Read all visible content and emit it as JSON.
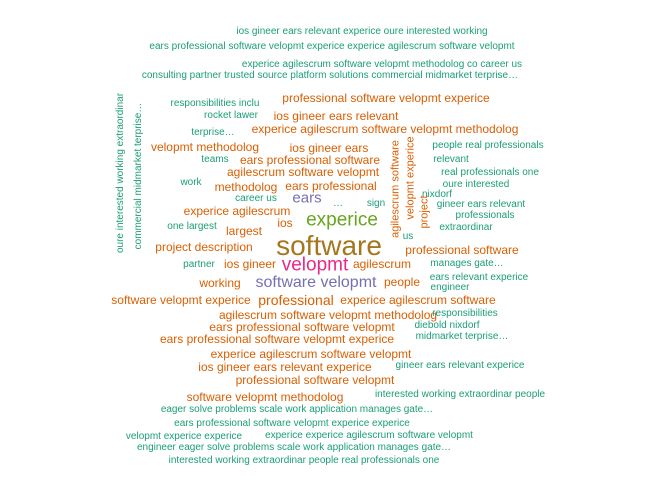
{
  "palette": {
    "teal": "#1b9e77",
    "orange": "#d95f02",
    "purple": "#7570b3",
    "pink": "#e7298a",
    "green": "#66a61e",
    "gold": "#a6761d"
  },
  "words": [
    {
      "text": "ios gineer ears relevant experice oure interested working",
      "color": "teal"
    },
    {
      "text": "ears professional software velopmt experice experice agilescrum software velopmt",
      "color": "teal"
    },
    {
      "text": "experice agilescrum software velopmt methodolog co career us",
      "color": "teal"
    },
    {
      "text": "consulting partner trusted source platform solutions commercial midmarket terprise…",
      "color": "teal"
    },
    {
      "text": "oure interested working extraordinar",
      "color": "teal",
      "vertical": true
    },
    {
      "text": "commercial midmarket terprise…",
      "color": "teal",
      "vertical": true
    },
    {
      "text": "responsibilities inclu",
      "color": "teal"
    },
    {
      "text": "professional software velopmt experice",
      "color": "orange"
    },
    {
      "text": "rocket lawer",
      "color": "teal"
    },
    {
      "text": "ios gineer ears relevant",
      "color": "orange"
    },
    {
      "text": "terprise…",
      "color": "teal"
    },
    {
      "text": "experice agilescrum software velopmt methodolog",
      "color": "orange"
    },
    {
      "text": "velopmt methodolog",
      "color": "orange"
    },
    {
      "text": "ios gineer ears",
      "color": "orange"
    },
    {
      "text": "agilescrum software",
      "color": "orange",
      "vertical": true
    },
    {
      "text": "velopmt experice",
      "color": "orange",
      "vertical": true
    },
    {
      "text": "people real professionals",
      "color": "teal"
    },
    {
      "text": "teams",
      "color": "teal"
    },
    {
      "text": "ears professional software",
      "color": "orange"
    },
    {
      "text": "relevant",
      "color": "teal"
    },
    {
      "text": "agilescrum software velopmt",
      "color": "orange"
    },
    {
      "text": "real professionals one",
      "color": "teal"
    },
    {
      "text": "work",
      "color": "teal"
    },
    {
      "text": "methodolog",
      "color": "orange"
    },
    {
      "text": "ears professional",
      "color": "orange"
    },
    {
      "text": "oure interested",
      "color": "teal"
    },
    {
      "text": "nixdorf",
      "color": "teal"
    },
    {
      "text": "career us",
      "color": "teal"
    },
    {
      "text": "ears",
      "color": "purple"
    },
    {
      "text": "sign",
      "color": "teal"
    },
    {
      "text": "gineer ears relevant",
      "color": "teal"
    },
    {
      "text": "experice agilescrum",
      "color": "orange"
    },
    {
      "text": "…",
      "color": "teal"
    },
    {
      "text": "project",
      "color": "orange",
      "vertical": true
    },
    {
      "text": "professionals",
      "color": "teal"
    },
    {
      "text": "experice",
      "color": "green"
    },
    {
      "text": "one largest",
      "color": "teal"
    },
    {
      "text": "largest",
      "color": "orange"
    },
    {
      "text": "ios",
      "color": "orange"
    },
    {
      "text": "extraordinar",
      "color": "teal"
    },
    {
      "text": "us",
      "color": "teal"
    },
    {
      "text": "project description",
      "color": "orange"
    },
    {
      "text": "software",
      "color": "gold"
    },
    {
      "text": "professional software",
      "color": "orange"
    },
    {
      "text": "partner",
      "color": "teal"
    },
    {
      "text": "ios gineer",
      "color": "orange"
    },
    {
      "text": "velopmt",
      "color": "pink"
    },
    {
      "text": "agilescrum",
      "color": "orange"
    },
    {
      "text": "manages gate…",
      "color": "teal"
    },
    {
      "text": "ears relevant experice",
      "color": "teal"
    },
    {
      "text": "working",
      "color": "orange"
    },
    {
      "text": "software velopmt",
      "color": "purple"
    },
    {
      "text": "people",
      "color": "orange"
    },
    {
      "text": "engineer",
      "color": "teal"
    },
    {
      "text": "software velopmt experice",
      "color": "orange"
    },
    {
      "text": "professional",
      "color": "orange"
    },
    {
      "text": "experice agilescrum software",
      "color": "orange"
    },
    {
      "text": "agilescrum software velopmt methodolog",
      "color": "orange"
    },
    {
      "text": "responsibilities",
      "color": "teal"
    },
    {
      "text": "ears professional software velopmt",
      "color": "orange"
    },
    {
      "text": "diebold nixdorf",
      "color": "teal"
    },
    {
      "text": "ears professional software velopmt experice",
      "color": "orange"
    },
    {
      "text": "midmarket terprise…",
      "color": "teal"
    },
    {
      "text": "experice agilescrum software velopmt",
      "color": "orange"
    },
    {
      "text": "ios gineer ears relevant experice",
      "color": "orange"
    },
    {
      "text": "gineer ears relevant experice",
      "color": "teal"
    },
    {
      "text": "professional software velopmt",
      "color": "orange"
    },
    {
      "text": "software velopmt methodolog",
      "color": "orange"
    },
    {
      "text": "interested working extraordinar people",
      "color": "teal"
    },
    {
      "text": "eager solve problems scale work application manages gate…",
      "color": "teal"
    },
    {
      "text": "ears professional software velopmt experice experice",
      "color": "teal"
    },
    {
      "text": "velopmt experice experice",
      "color": "teal"
    },
    {
      "text": "experice experice agilescrum software velopmt",
      "color": "teal"
    },
    {
      "text": "engineer eager solve problems scale work application manages gate…",
      "color": "teal"
    },
    {
      "text": "interested working extraordinar people real professionals one",
      "color": "teal"
    }
  ]
}
